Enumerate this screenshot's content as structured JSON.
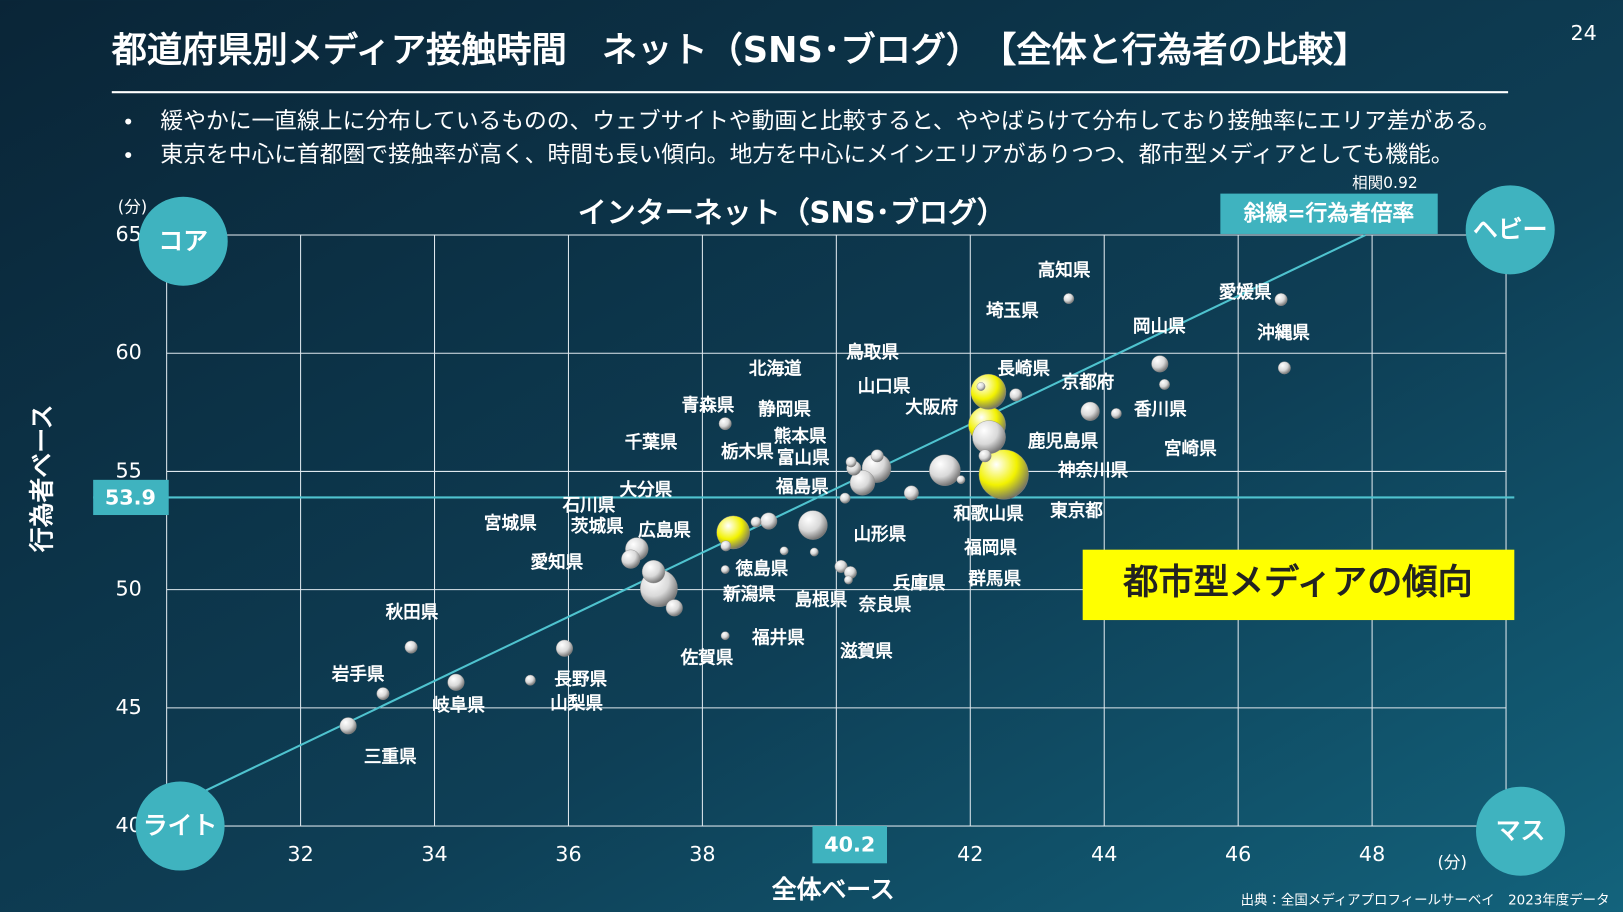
{
  "page_number": "24",
  "title": "都道府県別メディア接触時間　ネット（SNS･ブログ）　【全体と行為者の比較】",
  "bullets": [
    "緩やかに一直線上に分布しているものの、ウェブサイトや動画と比較すると、ややばらけて分布しており接触率にエリア差がある。",
    "東京を中心に首都圏で接触率が高く、時間も長い傾向。地方を中心にメインエリアがありつつ、都市型メディアとしても機能。"
  ],
  "source": "出典：全国メディアプロフィールサーベイ　2023年度データ",
  "chart_data": {
    "type": "scatter",
    "title": "インターネット（SNS･ブログ）",
    "x_label": "全体ベース",
    "y_label": "行為者ベース",
    "x_unit": "(分)",
    "y_unit": "(分)",
    "xlim": [
      30,
      50
    ],
    "ylim": [
      40,
      65
    ],
    "xticks": [
      32,
      34,
      36,
      38,
      40,
      42,
      44,
      46,
      48
    ],
    "yticks": [
      40,
      45,
      50,
      55,
      60,
      65
    ],
    "grid": true,
    "quadrants": {
      "top_left": "コア",
      "top_right": "ヘビー",
      "bottom_left": "ライト",
      "bottom_right": "マス"
    },
    "reference_x": 40.2,
    "reference_y": 53.9,
    "diagonal": {
      "label": "斜線=行為者倍率",
      "slope": 1.357,
      "note": "相関0.92"
    },
    "annotation": "都市型メディアの傾向",
    "points": [
      {
        "label": "高知県",
        "x": 43.47,
        "y": 62.31,
        "size": 5,
        "color": "#d9d9d9"
      },
      {
        "label": "愛媛県",
        "x": 46.64,
        "y": 62.27,
        "size": 6,
        "color": "#d9d9d9"
      },
      {
        "label": "沖縄県",
        "x": 46.69,
        "y": 59.38,
        "size": 6,
        "color": "#d9d9d9"
      },
      {
        "label": "岡山県",
        "x": 44.83,
        "y": 59.55,
        "size": 8,
        "color": "#d9d9d9"
      },
      {
        "label": "香川県",
        "x": 44.9,
        "y": 58.68,
        "size": 5,
        "color": "#d9d9d9"
      },
      {
        "label": "宮崎県",
        "x": 44.18,
        "y": 57.45,
        "size": 5,
        "color": "#d9d9d9"
      },
      {
        "label": "京都府",
        "x": 43.79,
        "y": 57.54,
        "size": 9,
        "color": "#d9d9d9"
      },
      {
        "label": "埼玉県",
        "x": 42.27,
        "y": 58.37,
        "size": 17,
        "color": "#f2f200"
      },
      {
        "label": "鳥取県",
        "x": 42.16,
        "y": 58.59,
        "size": 4,
        "color": "#d9d9d9"
      },
      {
        "label": "長崎県",
        "x": 42.68,
        "y": 58.24,
        "size": 6,
        "color": "#d9d9d9"
      },
      {
        "label": "神奈川県",
        "x": 42.25,
        "y": 56.97,
        "size": 18,
        "color": "#f2f200"
      },
      {
        "label": "大阪府",
        "x": 42.28,
        "y": 56.45,
        "size": 16,
        "color": "#d9d9d9"
      },
      {
        "label": "鹿児島県",
        "x": 42.22,
        "y": 55.66,
        "size": 6,
        "color": "#d9d9d9"
      },
      {
        "label": "東京都",
        "x": 42.5,
        "y": 54.87,
        "size": 24,
        "color": "#f2f200"
      },
      {
        "label": "和歌山県",
        "x": 41.86,
        "y": 54.65,
        "size": 4,
        "color": "#d9d9d9"
      },
      {
        "label": "福岡県",
        "x": 41.62,
        "y": 55.05,
        "size": 15,
        "color": "#d9d9d9"
      },
      {
        "label": "群馬県",
        "x": 41.12,
        "y": 54.09,
        "size": 7,
        "color": "#d9d9d9"
      },
      {
        "label": "北海道",
        "x": 40.6,
        "y": 55.14,
        "size": 14,
        "color": "#d9d9d9"
      },
      {
        "label": "山口県",
        "x": 40.61,
        "y": 55.66,
        "size": 6,
        "color": "#d9d9d9"
      },
      {
        "label": "静岡県",
        "x": 40.39,
        "y": 54.52,
        "size": 12,
        "color": "#d9d9d9"
      },
      {
        "label": "熊本県",
        "x": 40.26,
        "y": 55.14,
        "size": 7,
        "color": "#d9d9d9"
      },
      {
        "label": "富山県",
        "x": 40.22,
        "y": 55.4,
        "size": 5,
        "color": "#d9d9d9"
      },
      {
        "label": "福島県",
        "x": 40.13,
        "y": 53.87,
        "size": 5,
        "color": "#d9d9d9"
      },
      {
        "label": "山形県",
        "x": 39.65,
        "y": 52.73,
        "size": 14,
        "color": "#d9d9d9"
      },
      {
        "label": "栃木県",
        "x": 38.99,
        "y": 52.9,
        "size": 8,
        "color": "#d9d9d9"
      },
      {
        "label": "青森県",
        "x": 38.34,
        "y": 57.02,
        "size": 6,
        "color": "#d9d9d9"
      },
      {
        "label": "千葉県",
        "x": 38.46,
        "y": 52.42,
        "size": 16,
        "color": "#f2f200"
      },
      {
        "label": "大分県",
        "x": 38.8,
        "y": 52.86,
        "size": 5,
        "color": "#d9d9d9"
      },
      {
        "label": "石川県",
        "x": 38.35,
        "y": 51.85,
        "size": 5,
        "color": "#d9d9d9"
      },
      {
        "label": "広島県",
        "x": 37.27,
        "y": 50.76,
        "size": 11,
        "color": "#d9d9d9"
      },
      {
        "label": "宮城県",
        "x": 37.02,
        "y": 51.72,
        "size": 11,
        "color": "#d9d9d9"
      },
      {
        "label": "茨城県",
        "x": 36.93,
        "y": 51.29,
        "size": 9,
        "color": "#d9d9d9"
      },
      {
        "label": "愛知県",
        "x": 37.35,
        "y": 50.06,
        "size": 18,
        "color": "#d9d9d9"
      },
      {
        "label": "徳島県",
        "x": 38.34,
        "y": 50.85,
        "size": 4,
        "color": "#d9d9d9"
      },
      {
        "label": "新潟県",
        "x": 37.58,
        "y": 49.23,
        "size": 8,
        "color": "#d9d9d9"
      },
      {
        "label": "佐賀県",
        "x": 38.34,
        "y": 48.05,
        "size": 4,
        "color": "#d9d9d9"
      },
      {
        "label": "福井県",
        "x": 39.22,
        "y": 51.64,
        "size": 4,
        "color": "#d9d9d9"
      },
      {
        "label": "島根県",
        "x": 39.67,
        "y": 51.59,
        "size": 4,
        "color": "#d9d9d9"
      },
      {
        "label": "兵庫県",
        "x": 40.07,
        "y": 50.98,
        "size": 6,
        "color": "#d9d9d9"
      },
      {
        "label": "奈良県",
        "x": 40.21,
        "y": 50.72,
        "size": 6,
        "color": "#d9d9d9"
      },
      {
        "label": "滋賀県",
        "x": 40.18,
        "y": 50.41,
        "size": 4,
        "color": "#d9d9d9"
      },
      {
        "label": "秋田県",
        "x": 33.65,
        "y": 47.57,
        "size": 6,
        "color": "#d9d9d9"
      },
      {
        "label": "岩手県",
        "x": 33.23,
        "y": 45.6,
        "size": 6,
        "color": "#d9d9d9"
      },
      {
        "label": "岐阜県",
        "x": 34.32,
        "y": 46.08,
        "size": 8,
        "color": "#d9d9d9"
      },
      {
        "label": "長野県",
        "x": 35.94,
        "y": 47.52,
        "size": 8,
        "color": "#d9d9d9"
      },
      {
        "label": "山梨県",
        "x": 35.43,
        "y": 46.17,
        "size": 5,
        "color": "#d9d9d9"
      },
      {
        "label": "三重県",
        "x": 32.71,
        "y": 44.24,
        "size": 8,
        "color": "#d9d9d9"
      }
    ]
  }
}
